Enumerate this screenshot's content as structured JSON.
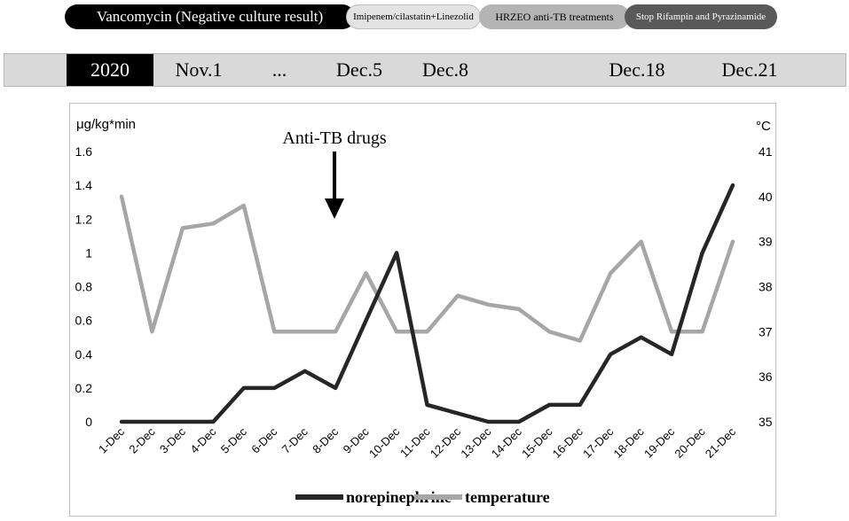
{
  "phases": [
    {
      "label": "Vancomycin (Negative culture result)",
      "color": "#000000"
    },
    {
      "label": "Imipenem/cilastatin+Linezolid",
      "color": "#e3e3e3"
    },
    {
      "label": "HRZEO anti-TB treatments",
      "color": "#b4b4b4"
    },
    {
      "label": "Stop Rifampin and Pyrazinamide",
      "color": "#595959"
    }
  ],
  "timeline": {
    "year": "2020",
    "dates": [
      "Nov.1",
      "...",
      "Dec.5",
      "Dec.8",
      "Dec.18",
      "Dec.21"
    ]
  },
  "annotation": "Anti-TB drugs",
  "chart_data": {
    "type": "line",
    "categories": [
      "1-Dec",
      "2-Dec",
      "3-Dec",
      "4-Dec",
      "5-Dec",
      "6-Dec",
      "7-Dec",
      "8-Dec",
      "9-Dec",
      "10-Dec",
      "11-Dec",
      "12-Dec",
      "13-Dec",
      "14-Dec",
      "15-Dec",
      "16-Dec",
      "17-Dec",
      "18-Dec",
      "19-Dec",
      "20-Dec",
      "21-Dec"
    ],
    "ylabel_left": "μg/kg*min",
    "ylabel_right": "°C",
    "ylim_left": [
      0,
      1.6
    ],
    "yticks_left": [
      "0",
      "0.2",
      "0.4",
      "0.6",
      "0.8",
      "1",
      "1.2",
      "1.4",
      "1.6"
    ],
    "ylim_right": [
      35,
      41
    ],
    "yticks_right": [
      "35",
      "36",
      "37",
      "38",
      "39",
      "40",
      "41"
    ],
    "grid": false,
    "legend_position": "bottom",
    "series": [
      {
        "name": "norepinephrine",
        "axis": "left",
        "color": "#262626",
        "values": [
          0,
          0,
          0,
          0,
          0.2,
          0.2,
          0.3,
          0.2,
          0.6,
          1.0,
          0.1,
          0.05,
          0,
          0,
          0.1,
          0.1,
          0.4,
          0.5,
          0.4,
          1.0,
          1.4
        ]
      },
      {
        "name": "temperature",
        "axis": "right",
        "color": "#a6a6a6",
        "values": [
          40.0,
          37.0,
          39.3,
          39.4,
          39.8,
          37.0,
          37.0,
          37.0,
          38.3,
          37.0,
          37.0,
          37.8,
          37.6,
          37.5,
          37.0,
          36.8,
          38.3,
          39.0,
          37.0,
          37.0,
          39.0
        ]
      }
    ]
  }
}
